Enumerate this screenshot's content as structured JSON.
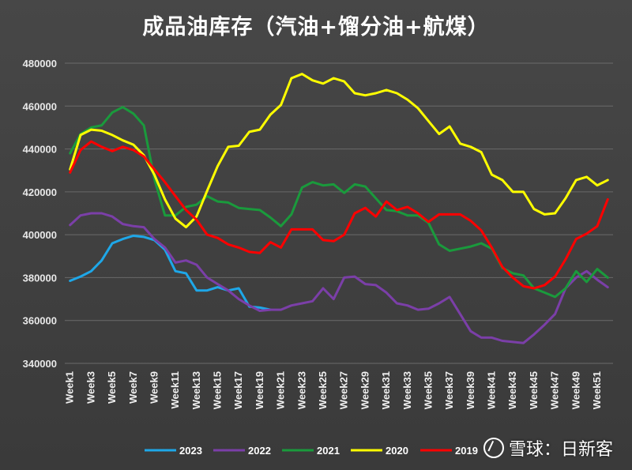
{
  "chart_data": {
    "type": "line",
    "title": "成品油库存（汽油+馏分油+航煤）",
    "xlabel": "",
    "ylabel": "",
    "ylim": [
      340000,
      480000
    ],
    "yticks": [
      340000,
      360000,
      380000,
      400000,
      420000,
      440000,
      460000,
      480000
    ],
    "ytick_labels": [
      "340000",
      "360000",
      "380000",
      "400000",
      "420000",
      "440000",
      "460000",
      "480000"
    ],
    "x_count": 52,
    "xtick_labels": [
      "Week1",
      "Week3",
      "Week5",
      "Week7",
      "Week9",
      "Week11",
      "Week13",
      "Week15",
      "Week17",
      "Week19",
      "Week21",
      "Week23",
      "Week25",
      "Week27",
      "Week29",
      "Week31",
      "Week33",
      "Week35",
      "Week37",
      "Week39",
      "Week41",
      "Week43",
      "Week45",
      "Week47",
      "Week49",
      "Week51"
    ],
    "grid": true,
    "legend_position": "bottom",
    "series": [
      {
        "name": "2023",
        "color": "#1ea7e8",
        "values": [
          378500,
          380500,
          383000,
          388000,
          396000,
          398000,
          399500,
          399000,
          397500,
          393000,
          383000,
          382000,
          374000,
          374000,
          375500,
          374000,
          375000,
          366500,
          366000,
          365000
        ]
      },
      {
        "name": "2022",
        "color": "#7b3fa8",
        "values": [
          404500,
          409000,
          410000,
          410000,
          408500,
          405000,
          404000,
          403500,
          398000,
          394000,
          387000,
          388000,
          386000,
          380000,
          377000,
          374000,
          370000,
          367000,
          364500,
          365000,
          365000,
          367000,
          368000,
          369000,
          375000,
          370000,
          380000,
          380500,
          377000,
          376500,
          373000,
          368000,
          367000,
          365000,
          365500,
          368000,
          371000,
          363000,
          355000,
          352000,
          352000,
          350500,
          350000,
          349500,
          353500,
          358000,
          363000,
          375000,
          380000,
          383000,
          379000,
          375500
        ]
      },
      {
        "name": "2021",
        "color": "#1a9a3c",
        "values": [
          438000,
          447000,
          450000,
          451000,
          457000,
          459500,
          456500,
          451000,
          426000,
          409000,
          409000,
          413000,
          414000,
          418000,
          415500,
          415000,
          412500,
          412000,
          411500,
          408000,
          404000,
          409500,
          422000,
          424500,
          423000,
          423500,
          419500,
          423500,
          422500,
          417000,
          411500,
          411000,
          409000,
          409000,
          405500,
          395500,
          392500,
          393500,
          394500,
          396000,
          393500,
          384500,
          382000,
          381000,
          375000,
          373000,
          371000,
          375000,
          383000,
          378000,
          384000,
          380000
        ]
      },
      {
        "name": "2020",
        "color": "#ffff00",
        "values": [
          430500,
          446500,
          449000,
          448500,
          446500,
          444000,
          442000,
          437000,
          428000,
          416500,
          407500,
          403500,
          408500,
          420500,
          432000,
          441000,
          441500,
          448000,
          449000,
          456000,
          460500,
          473000,
          475000,
          472000,
          470500,
          473000,
          471500,
          466000,
          465000,
          466000,
          467500,
          466000,
          463000,
          459000,
          453000,
          447000,
          450500,
          442500,
          441000,
          438500,
          428000,
          425500,
          420000,
          420000,
          412000,
          409500,
          410000,
          417000,
          425500,
          427000,
          423000,
          425500
        ]
      },
      {
        "name": "2019",
        "color": "#ff0000",
        "values": [
          429000,
          439500,
          443500,
          441000,
          439000,
          441000,
          439500,
          436500,
          430500,
          424500,
          418000,
          411500,
          407000,
          400000,
          398500,
          395500,
          394000,
          392000,
          391500,
          396500,
          394000,
          402500,
          402500,
          402500,
          397500,
          397000,
          400000,
          410000,
          412500,
          408500,
          415500,
          411500,
          413000,
          410000,
          406000,
          409500,
          409500,
          409500,
          406500,
          402000,
          394000,
          385000,
          380000,
          376000,
          375000,
          376500,
          380500,
          388500,
          398000,
          400500,
          404000,
          416500
        ]
      }
    ]
  },
  "watermark": {
    "text": "雪球：日新客"
  }
}
